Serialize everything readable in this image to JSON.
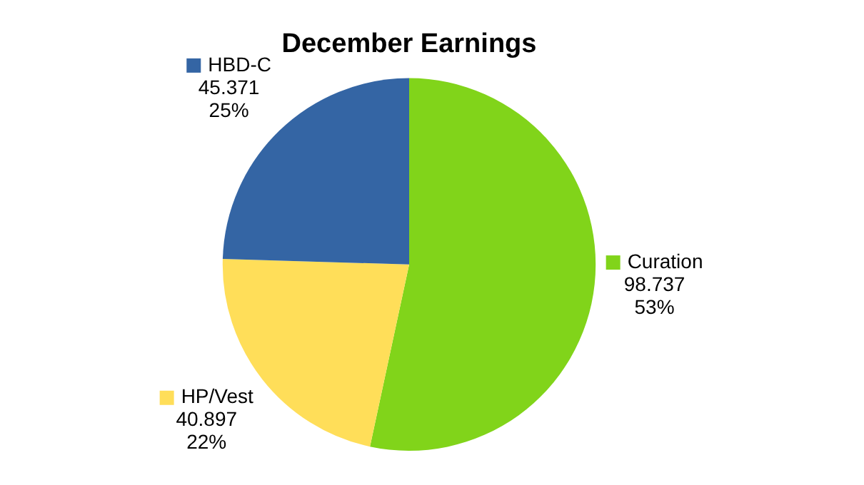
{
  "chart_data": {
    "type": "pie",
    "title": "December Earnings",
    "categories": [
      "Curation",
      "HP/Vest",
      "HBD-C"
    ],
    "values": [
      98.737,
      40.897,
      45.371
    ],
    "colors": [
      "#81d41a",
      "#ffde59",
      "#3465a4"
    ],
    "value_labels": [
      "98.737\n53%",
      "40.897\n22%",
      "45.371\n25%"
    ],
    "legend": "top right"
  }
}
